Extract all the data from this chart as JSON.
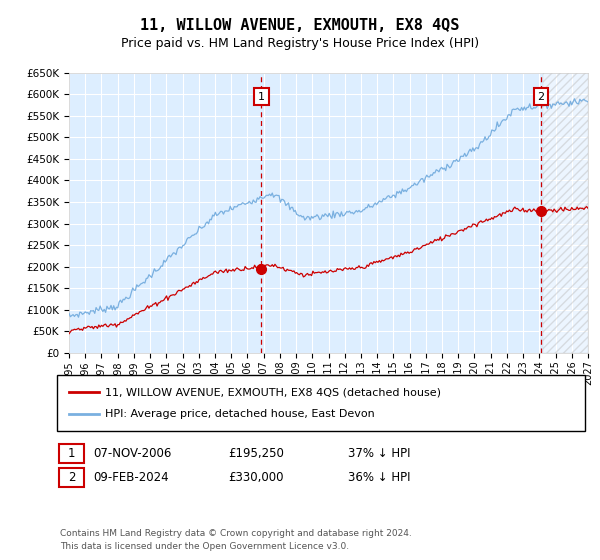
{
  "title": "11, WILLOW AVENUE, EXMOUTH, EX8 4QS",
  "subtitle": "Price paid vs. HM Land Registry's House Price Index (HPI)",
  "xlim": [
    1995,
    2027
  ],
  "ylim": [
    0,
    650000
  ],
  "yticks": [
    0,
    50000,
    100000,
    150000,
    200000,
    250000,
    300000,
    350000,
    400000,
    450000,
    500000,
    550000,
    600000,
    650000
  ],
  "ytick_labels": [
    "£0",
    "£50K",
    "£100K",
    "£150K",
    "£200K",
    "£250K",
    "£300K",
    "£350K",
    "£400K",
    "£450K",
    "£500K",
    "£550K",
    "£600K",
    "£650K"
  ],
  "xticks": [
    1995,
    1996,
    1997,
    1998,
    1999,
    2000,
    2001,
    2002,
    2003,
    2004,
    2005,
    2006,
    2007,
    2008,
    2009,
    2010,
    2011,
    2012,
    2013,
    2014,
    2015,
    2016,
    2017,
    2018,
    2019,
    2020,
    2021,
    2022,
    2023,
    2024,
    2025,
    2026,
    2027
  ],
  "background_color": "#ffffff",
  "plot_bg_color": "#ddeeff",
  "grid_color": "#ffffff",
  "hpi_color": "#7ab0e0",
  "property_color": "#cc0000",
  "future_start": 2024.25,
  "transaction1_year": 2006.85,
  "transaction1_price": 195250,
  "transaction2_year": 2024.1,
  "transaction2_price": 330000,
  "legend_property": "11, WILLOW AVENUE, EXMOUTH, EX8 4QS (detached house)",
  "legend_hpi": "HPI: Average price, detached house, East Devon",
  "annotation1_date": "07-NOV-2006",
  "annotation1_price": "£195,250",
  "annotation1_hpi": "37% ↓ HPI",
  "annotation2_date": "09-FEB-2024",
  "annotation2_price": "£330,000",
  "annotation2_hpi": "36% ↓ HPI",
  "footer": "Contains HM Land Registry data © Crown copyright and database right 2024.\nThis data is licensed under the Open Government Licence v3.0."
}
